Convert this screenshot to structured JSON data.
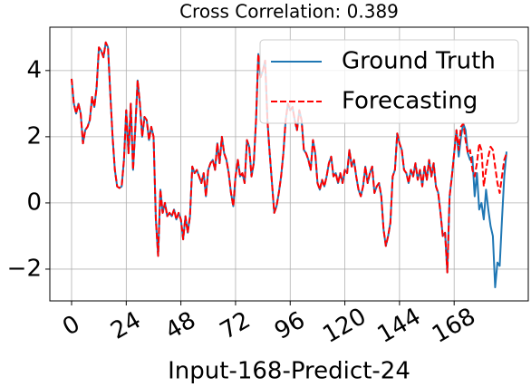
{
  "chart_data": {
    "type": "line",
    "title": "Cross Correlation: 0.389",
    "xlabel": "Input-168-Predict-24",
    "x": [
      0,
      1,
      2,
      3,
      4,
      5,
      6,
      7,
      8,
      9,
      10,
      11,
      12,
      13,
      14,
      15,
      16,
      17,
      18,
      19,
      20,
      21,
      22,
      23,
      24,
      25,
      26,
      27,
      28,
      29,
      30,
      31,
      32,
      33,
      34,
      35,
      36,
      37,
      38,
      39,
      40,
      41,
      42,
      43,
      44,
      45,
      46,
      47,
      48,
      49,
      50,
      51,
      52,
      53,
      54,
      55,
      56,
      57,
      58,
      59,
      60,
      61,
      62,
      63,
      64,
      65,
      66,
      67,
      68,
      69,
      70,
      71,
      72,
      73,
      74,
      75,
      76,
      77,
      78,
      79,
      80,
      81,
      82,
      83,
      84,
      85,
      86,
      87,
      88,
      89,
      90,
      91,
      92,
      93,
      94,
      95,
      96,
      97,
      98,
      99,
      100,
      101,
      102,
      103,
      104,
      105,
      106,
      107,
      108,
      109,
      110,
      111,
      112,
      113,
      114,
      115,
      116,
      117,
      118,
      119,
      120,
      121,
      122,
      123,
      124,
      125,
      126,
      127,
      128,
      129,
      130,
      131,
      132,
      133,
      134,
      135,
      136,
      137,
      138,
      139,
      140,
      141,
      142,
      143,
      144,
      145,
      146,
      147,
      148,
      149,
      150,
      151,
      152,
      153,
      154,
      155,
      156,
      157,
      158,
      159,
      160,
      161,
      162,
      163,
      164,
      165,
      166,
      167,
      168,
      169,
      170,
      171,
      172,
      173,
      174,
      175,
      176,
      177,
      178,
      179,
      180,
      181,
      182,
      183,
      184,
      185,
      186,
      187,
      188,
      189,
      190,
      191
    ],
    "series": [
      {
        "name": "Ground Truth",
        "color": "#1f77b4",
        "dash": false,
        "values": [
          3.75,
          3.0,
          2.7,
          3.0,
          2.7,
          1.8,
          2.2,
          2.3,
          2.5,
          3.2,
          2.9,
          3.5,
          4.7,
          4.6,
          4.4,
          4.85,
          4.7,
          3.3,
          2.0,
          1.0,
          0.5,
          0.45,
          0.5,
          1.3,
          2.8,
          1.5,
          3.0,
          1.0,
          2.3,
          3.7,
          3.0,
          2.0,
          2.6,
          2.5,
          1.9,
          2.3,
          2.0,
          -0.5,
          -1.6,
          0.4,
          -0.3,
          0.0,
          -0.4,
          -0.3,
          -0.4,
          -0.2,
          -0.5,
          -0.3,
          -0.5,
          -1.1,
          -0.4,
          -0.9,
          -0.4,
          1.1,
          0.9,
          1.0,
          0.8,
          0.6,
          0.9,
          0.2,
          1.0,
          1.2,
          1.3,
          1.0,
          1.8,
          1.2,
          2.0,
          1.5,
          1.3,
          0.9,
          0.3,
          -0.1,
          0.8,
          1.3,
          0.8,
          0.9,
          0.6,
          1.9,
          1.7,
          0.8,
          1.2,
          2.5,
          4.5,
          3.8,
          4.0,
          4.3,
          2.5,
          1.5,
          0.6,
          -0.3,
          -0.1,
          0.3,
          0.8,
          1.5,
          2.5,
          3.0,
          2.8,
          2.9,
          2.5,
          2.2,
          2.8,
          2.5,
          1.6,
          1.5,
          1.3,
          1.0,
          1.9,
          1.5,
          0.6,
          0.4,
          0.7,
          0.5,
          0.8,
          1.2,
          1.4,
          0.8,
          0.9,
          0.6,
          0.9,
          0.6,
          1.0,
          0.9,
          1.6,
          1.1,
          1.3,
          0.8,
          0.4,
          0.2,
          0.5,
          1.1,
          0.6,
          0.9,
          1.1,
          0.3,
          0.5,
          0.6,
          0.2,
          -0.8,
          -1.3,
          -1.0,
          -0.6,
          0.8,
          1.0,
          2.1,
          1.8,
          1.6,
          1.0,
          0.9,
          0.6,
          1.0,
          0.8,
          1.2,
          0.7,
          1.0,
          0.5,
          1.1,
          0.7,
          1.3,
          0.8,
          1.2,
          0.5,
          0.3,
          -0.3,
          -1.0,
          -0.9,
          -2.1,
          0.2,
          0.8,
          1.5,
          2.2,
          1.4,
          2.0,
          2.4,
          2.2,
          1.5,
          1.3,
          1.4,
          0.2,
          0.9,
          -0.2,
          0.0,
          -0.5,
          0.4,
          -0.2,
          -0.7,
          -1.0,
          -2.55,
          -1.8,
          -1.9,
          -0.5,
          0.8,
          1.55
        ]
      },
      {
        "name": "Forecasting",
        "color": "red",
        "dash": true,
        "values": [
          3.75,
          3.0,
          2.7,
          3.0,
          2.7,
          1.8,
          2.2,
          2.3,
          2.5,
          3.2,
          2.9,
          3.5,
          4.7,
          4.6,
          4.4,
          4.85,
          4.7,
          3.3,
          2.0,
          1.0,
          0.5,
          0.45,
          0.5,
          1.3,
          2.8,
          1.5,
          3.0,
          1.0,
          2.3,
          3.7,
          3.0,
          2.0,
          2.6,
          2.5,
          1.9,
          2.3,
          2.0,
          -0.5,
          -1.6,
          0.4,
          -0.3,
          0.0,
          -0.4,
          -0.3,
          -0.4,
          -0.2,
          -0.5,
          -0.3,
          -0.5,
          -1.1,
          -0.4,
          -0.9,
          -0.4,
          1.1,
          0.9,
          1.0,
          0.8,
          0.6,
          0.9,
          0.2,
          1.0,
          1.2,
          1.3,
          1.0,
          1.8,
          1.2,
          2.0,
          1.5,
          1.3,
          0.9,
          0.3,
          -0.1,
          0.8,
          1.3,
          0.8,
          0.9,
          0.6,
          1.9,
          1.7,
          0.8,
          1.2,
          2.5,
          4.5,
          3.8,
          4.0,
          4.3,
          2.5,
          1.5,
          0.6,
          -0.3,
          -0.1,
          0.3,
          0.8,
          1.5,
          2.5,
          3.0,
          2.8,
          2.9,
          2.5,
          2.2,
          2.8,
          2.5,
          1.6,
          1.5,
          1.3,
          1.0,
          1.9,
          1.5,
          0.6,
          0.4,
          0.7,
          0.5,
          0.8,
          1.2,
          1.4,
          0.8,
          0.9,
          0.6,
          0.9,
          0.6,
          1.0,
          0.9,
          1.6,
          1.1,
          1.3,
          0.8,
          0.4,
          0.2,
          0.5,
          1.1,
          0.6,
          0.9,
          1.1,
          0.3,
          0.5,
          0.6,
          0.2,
          -0.8,
          -1.3,
          -1.0,
          -0.6,
          0.8,
          1.0,
          2.1,
          1.8,
          1.6,
          1.0,
          0.9,
          0.6,
          1.0,
          0.8,
          1.2,
          0.7,
          1.0,
          0.5,
          1.1,
          0.7,
          1.3,
          0.8,
          1.2,
          0.5,
          0.3,
          -0.3,
          -1.0,
          -0.9,
          -2.1,
          0.2,
          0.8,
          1.5,
          2.2,
          1.6,
          2.3,
          2.4,
          1.9,
          1.5,
          1.6,
          1.0,
          0.8,
          1.2,
          1.8,
          1.6,
          0.5,
          1.0,
          1.4,
          1.7,
          1.6,
          1.1,
          0.6,
          0.3,
          0.8,
          1.3,
          1.5
        ]
      }
    ],
    "xlim": [
      -9.55,
      200.55
    ],
    "xticks": [
      0,
      24,
      48,
      72,
      96,
      120,
      144,
      168
    ],
    "ylim": [
      -2.96,
      5.31
    ],
    "yticks": [
      {
        "value": -2,
        "label": "−2"
      },
      0,
      2,
      4
    ],
    "grid": true,
    "legend": "upper right"
  }
}
